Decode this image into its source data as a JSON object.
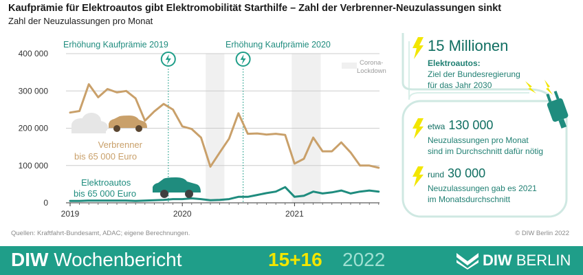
{
  "title": "Kaufprämie für Elektroautos gibt Elektromobilität Starthilfe – Zahl der Verbrenner-Neuzulassungen sinkt",
  "subtitle": "Zahl der Neuzulassungen pro Monat",
  "source": "Quellen: Kraftfahrt-Bundesamt, ADAC; eigene Berechnungen.",
  "copyright": "© DIW Berlin 2022",
  "footer": {
    "brand_bold": "DIW",
    "brand_rest": " Wochenbericht",
    "issue": "15+16",
    "year": "2022",
    "logo_bold": "DIW",
    "logo_rest": " BERLIN"
  },
  "colors": {
    "verbrenner": "#c9a06a",
    "elektro": "#1f8c7e",
    "accent": "#1f9e89",
    "bolt": "#f2e600",
    "lockdown": "#f0f0f0",
    "grid": "#cccccc"
  },
  "icons": [
    "lightning-icon",
    "car-icon",
    "plug-icon",
    "rain-cloud-icon"
  ],
  "panel": {
    "big_value": "15 Millionen",
    "big_label": "Elektroautos:",
    "big_desc_1": "Ziel der Bundesregierung",
    "big_desc_2": "für das Jahr 2030",
    "mid_prefix": "etwa",
    "mid_value": "130 000",
    "mid_desc_1": "Neuzulassungen pro Monat",
    "mid_desc_2": "sind im Durchschnitt dafür nötig",
    "low_prefix": "rund",
    "low_value": "30 000",
    "low_desc_1": "Neuzulassungen gab es 2021",
    "low_desc_2": "im Monatsdurchschnitt"
  },
  "chart_data": {
    "type": "line",
    "title": "Kaufprämie für Elektroautos gibt Elektromobilität Starthilfe – Zahl der Verbrenner-Neuzulassungen sinkt",
    "subtitle": "Zahl der Neuzulassungen pro Monat",
    "xlabel": "",
    "ylabel": "",
    "ylim": [
      0,
      400000
    ],
    "yticks": [
      0,
      100000,
      200000,
      300000,
      400000
    ],
    "ytick_labels": [
      "0",
      "100 000",
      "200 000",
      "300 000",
      "400 000"
    ],
    "xticks": [
      "2019",
      "2020",
      "2021"
    ],
    "x_start": "2019-01",
    "grid": true,
    "series": [
      {
        "name": "Verbrenner bis 65 000 Euro",
        "label_1": "Verbrenner",
        "label_2": "bis 65 000 Euro",
        "color": "#c9a06a",
        "values": [
          242000,
          246000,
          318000,
          283000,
          305000,
          296000,
          300000,
          280000,
          220000,
          245000,
          265000,
          250000,
          205000,
          198000,
          175000,
          97000,
          135000,
          172000,
          240000,
          185000,
          186000,
          183000,
          185000,
          182000,
          105000,
          118000,
          175000,
          138000,
          138000,
          162000,
          135000,
          100000,
          100000,
          94000
        ]
      },
      {
        "name": "Elektroautos bis 65 000 Euro",
        "label_1": "Elektroautos",
        "label_2": "bis 65 000 Euro",
        "color": "#1f8c7e",
        "values": [
          5000,
          5000,
          6000,
          6000,
          6000,
          6000,
          6000,
          5000,
          6000,
          7000,
          8000,
          10000,
          10000,
          12000,
          10000,
          7000,
          8000,
          10000,
          16000,
          16000,
          21000,
          26000,
          30000,
          42000,
          16000,
          19000,
          30000,
          25000,
          28000,
          33000,
          25000,
          30000,
          33000,
          30000
        ]
      }
    ],
    "annotations": [
      {
        "label": "Erhöhung Kaufprämie 2019",
        "at_month_index": 10.5
      },
      {
        "label": "Erhöhung Kaufprämie 2020",
        "at_month_index": 18.5
      }
    ],
    "shaded_periods": [
      {
        "label_1": "Corona-",
        "label_2": "Lockdown",
        "from_index": 14.5,
        "to_index": 16.5
      },
      {
        "from_index": 23.7,
        "to_index": 26.8
      }
    ]
  }
}
